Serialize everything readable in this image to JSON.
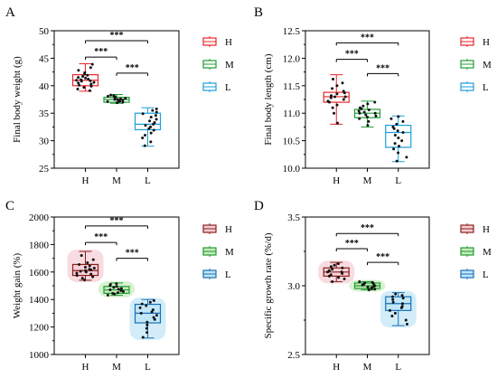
{
  "chart_data": [
    {
      "type": "box",
      "panel_label": "A",
      "xlabel": "",
      "ylabel": "Final body weight (g)",
      "ylim": [
        25,
        50
      ],
      "yticks": [
        25,
        30,
        35,
        40,
        45,
        50
      ],
      "ytick_labels": [
        "25",
        "30",
        "35",
        "40",
        "45",
        "50"
      ],
      "categories": [
        "H",
        "M",
        "L"
      ],
      "colors": [
        "#e8262a",
        "#1e9b35",
        "#1a9ed9"
      ],
      "fills": [
        null,
        null,
        null
      ],
      "boxes": [
        {
          "name": "H",
          "whisker_low": 39.0,
          "q1": 40.0,
          "median": 41.0,
          "q3": 42.0,
          "whisker_high": 44.0,
          "points": [
            39.1,
            39.4,
            39.7,
            39.9,
            40.1,
            40.3,
            40.5,
            40.6,
            40.8,
            40.9,
            41.0,
            41.1,
            41.2,
            41.4,
            41.5,
            41.7,
            41.9,
            42.1,
            42.4,
            42.8,
            43.3,
            43.9
          ]
        },
        {
          "name": "M",
          "whisker_low": 36.8,
          "q1": 37.0,
          "median": 37.5,
          "q3": 37.9,
          "whisker_high": 38.4,
          "points": [
            36.9,
            37.0,
            37.0,
            37.1,
            37.2,
            37.3,
            37.4,
            37.5,
            37.5,
            37.6,
            37.7,
            37.8,
            37.9,
            38.0,
            38.1,
            38.2,
            38.3
          ]
        },
        {
          "name": "L",
          "whisker_low": 29.0,
          "q1": 32.0,
          "median": 33.0,
          "q3": 35.0,
          "whisker_high": 36.0,
          "points": [
            29.1,
            29.8,
            30.5,
            31.0,
            31.4,
            31.9,
            32.2,
            32.5,
            32.8,
            33.0,
            33.3,
            33.6,
            33.9,
            34.3,
            34.6,
            34.9,
            35.2,
            35.5,
            35.8
          ]
        }
      ],
      "comparisons": [
        {
          "from": 0,
          "to": 1,
          "y": 45.2,
          "label": "***"
        },
        {
          "from": 1,
          "to": 2,
          "y": 42.3,
          "label": "***"
        },
        {
          "from": 0,
          "to": 2,
          "y": 48.2,
          "label": "***"
        }
      ],
      "legend": [
        {
          "label": "H"
        },
        {
          "label": "M"
        },
        {
          "label": "L"
        }
      ],
      "legend_position": "right"
    },
    {
      "type": "box",
      "panel_label": "B",
      "xlabel": "",
      "ylabel": "Final body length (cm)",
      "ylim": [
        10.0,
        12.5
      ],
      "yticks": [
        10.0,
        10.5,
        11.0,
        11.5,
        12.0,
        12.5
      ],
      "ytick_labels": [
        "10.0",
        "10.5",
        "11.0",
        "11.5",
        "12.0",
        "12.5"
      ],
      "categories": [
        "H",
        "M",
        "L"
      ],
      "colors": [
        "#e8262a",
        "#1e9b35",
        "#1a9ed9"
      ],
      "fills": [
        null,
        null,
        null
      ],
      "boxes": [
        {
          "name": "H",
          "whisker_low": 10.8,
          "q1": 11.2,
          "median": 11.3,
          "q3": 11.38,
          "whisker_high": 11.7,
          "points": [
            10.82,
            11.0,
            11.1,
            11.15,
            11.2,
            11.22,
            11.25,
            11.28,
            11.3,
            11.3,
            11.32,
            11.35,
            11.37,
            11.4,
            11.45,
            11.5,
            11.55,
            11.62
          ]
        },
        {
          "name": "M",
          "whisker_low": 10.75,
          "q1": 10.92,
          "median": 11.0,
          "q3": 11.07,
          "whisker_high": 11.22,
          "points": [
            10.78,
            10.85,
            10.9,
            10.93,
            10.95,
            10.97,
            11.0,
            11.0,
            11.02,
            11.04,
            11.06,
            11.08,
            11.1,
            11.13,
            11.17,
            11.2
          ]
        },
        {
          "name": "L",
          "whisker_low": 10.12,
          "q1": 10.38,
          "median": 10.65,
          "q3": 10.78,
          "whisker_high": 10.95,
          "points": [
            10.13,
            10.2,
            10.28,
            10.35,
            10.4,
            10.45,
            10.5,
            10.55,
            10.6,
            10.65,
            10.68,
            10.72,
            10.75,
            10.8,
            10.85,
            10.9,
            10.94
          ]
        }
      ],
      "comparisons": [
        {
          "from": 0,
          "to": 1,
          "y": 11.98,
          "label": "***"
        },
        {
          "from": 1,
          "to": 2,
          "y": 11.72,
          "label": "***"
        },
        {
          "from": 0,
          "to": 2,
          "y": 12.28,
          "label": "***"
        }
      ],
      "legend": [
        {
          "label": "H"
        },
        {
          "label": "M"
        },
        {
          "label": "L"
        }
      ],
      "legend_position": "right"
    },
    {
      "type": "box",
      "panel_label": "C",
      "xlabel": "",
      "ylabel": "Weight gain (%)",
      "ylim": [
        1000,
        2000
      ],
      "yticks": [
        1000,
        1200,
        1400,
        1600,
        1800,
        2000
      ],
      "ytick_labels": [
        "1000",
        "1200",
        "1400",
        "1600",
        "1800",
        "2000"
      ],
      "categories": [
        "H",
        "M",
        "L"
      ],
      "colors": [
        "#8b1f1a",
        "#1e9b35",
        "#1a6fb5"
      ],
      "fills": [
        "#f4cdd6",
        "#c8ebb9",
        "#bfe6f7"
      ],
      "boxes": [
        {
          "name": "H",
          "whisker_low": 1540,
          "q1": 1575,
          "median": 1610,
          "q3": 1655,
          "whisker_high": 1750,
          "points": [
            1542,
            1555,
            1565,
            1575,
            1585,
            1592,
            1600,
            1605,
            1610,
            1615,
            1620,
            1628,
            1635,
            1645,
            1655,
            1668,
            1690,
            1720
          ]
        },
        {
          "name": "M",
          "whisker_low": 1430,
          "q1": 1445,
          "median": 1470,
          "q3": 1495,
          "whisker_high": 1520,
          "points": [
            1432,
            1440,
            1445,
            1450,
            1458,
            1465,
            1470,
            1475,
            1480,
            1488,
            1495,
            1502,
            1510,
            1516
          ]
        },
        {
          "name": "L",
          "whisker_low": 1120,
          "q1": 1230,
          "median": 1300,
          "q3": 1365,
          "whisker_high": 1400,
          "points": [
            1125,
            1160,
            1190,
            1215,
            1235,
            1255,
            1270,
            1285,
            1300,
            1310,
            1325,
            1340,
            1355,
            1368,
            1380,
            1392
          ]
        }
      ],
      "comparisons": [
        {
          "from": 0,
          "to": 1,
          "y": 1815,
          "label": "***"
        },
        {
          "from": 1,
          "to": 2,
          "y": 1700,
          "label": "***"
        },
        {
          "from": 0,
          "to": 2,
          "y": 1935,
          "label": "***"
        }
      ],
      "legend": [
        {
          "label": "H"
        },
        {
          "label": "M"
        },
        {
          "label": "L"
        }
      ],
      "legend_position": "right"
    },
    {
      "type": "box",
      "panel_label": "D",
      "xlabel": "",
      "ylabel": "Specific growth rate (%/d)",
      "ylim": [
        2.5,
        3.5
      ],
      "yticks": [
        2.5,
        3.0,
        3.5
      ],
      "ytick_labels": [
        "2.5",
        "3.0",
        "3.5"
      ],
      "categories": [
        "H",
        "M",
        "L"
      ],
      "colors": [
        "#8b1f1a",
        "#1e9b35",
        "#1a6fb5"
      ],
      "fills": [
        "#f4cdd6",
        "#c8ebb9",
        "#bfe6f7"
      ],
      "boxes": [
        {
          "name": "H",
          "whisker_low": 3.03,
          "q1": 3.07,
          "median": 3.1,
          "q3": 3.13,
          "whisker_high": 3.17,
          "points": [
            3.03,
            3.05,
            3.06,
            3.07,
            3.08,
            3.09,
            3.1,
            3.1,
            3.11,
            3.12,
            3.13,
            3.14,
            3.15,
            3.16
          ]
        },
        {
          "name": "M",
          "whisker_low": 2.97,
          "q1": 2.98,
          "median": 3.0,
          "q3": 3.02,
          "whisker_high": 3.03,
          "points": [
            2.97,
            2.975,
            2.98,
            2.985,
            2.99,
            2.995,
            3.0,
            3.005,
            3.01,
            3.015,
            3.02,
            3.025,
            3.03
          ]
        },
        {
          "name": "L",
          "whisker_low": 2.71,
          "q1": 2.82,
          "median": 2.87,
          "q3": 2.92,
          "whisker_high": 2.95,
          "points": [
            2.72,
            2.75,
            2.78,
            2.8,
            2.82,
            2.84,
            2.85,
            2.87,
            2.88,
            2.9,
            2.91,
            2.92,
            2.93,
            2.94
          ]
        }
      ],
      "comparisons": [
        {
          "from": 0,
          "to": 1,
          "y": 3.27,
          "label": "***"
        },
        {
          "from": 1,
          "to": 2,
          "y": 3.17,
          "label": "***"
        },
        {
          "from": 0,
          "to": 2,
          "y": 3.38,
          "label": "***"
        }
      ],
      "legend": [
        {
          "label": "H"
        },
        {
          "label": "M"
        },
        {
          "label": "L"
        }
      ],
      "legend_position": "right"
    }
  ]
}
